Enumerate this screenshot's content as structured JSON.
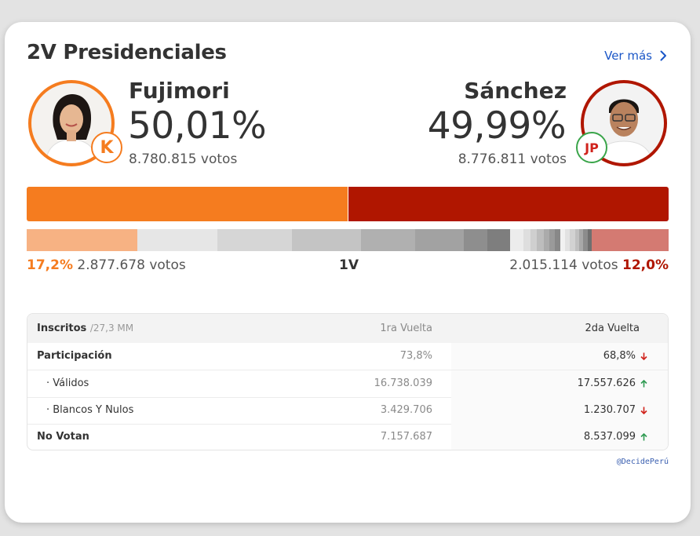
{
  "header": {
    "title": "2V Presidenciales",
    "more_label": "Ver más"
  },
  "candidates": {
    "left": {
      "name": "Fujimori",
      "percent": "50,01%",
      "votes": "8.780.815 votos",
      "party_badge": "K",
      "color": "#f57c1f",
      "share": 50.01
    },
    "right": {
      "name": "Sánchez",
      "percent": "49,99%",
      "votes": "8.776.811 votos",
      "party_badge": "JP",
      "color": "#b01600",
      "share": 49.99
    }
  },
  "first_round": {
    "label": "1V",
    "left": {
      "percent": "17,2%",
      "votes": "2.877.678 votos",
      "share": 17.2
    },
    "right": {
      "percent": "12,0%",
      "votes": "2.015.114 votos",
      "share": 12.0
    }
  },
  "table": {
    "header": {
      "label": "Inscritos",
      "sub": "/27,3 MM",
      "col1": "1ra Vuelta",
      "col2": "2da Vuelta"
    },
    "rows": [
      {
        "label": "Participación",
        "v1": "73,8%",
        "v2": "68,8%",
        "trend": "down"
      },
      {
        "label": "· Válidos",
        "v1": "16.738.039",
        "v2": "17.557.626",
        "trend": "up"
      },
      {
        "label": "· Blancos Y Nulos",
        "v1": "3.429.706",
        "v2": "1.230.707",
        "trend": "down"
      },
      {
        "label": "No Votan",
        "v1": "7.157.687",
        "v2": "8.537.099",
        "trend": "up"
      }
    ]
  },
  "footer": {
    "credit": "@DecidePerú"
  },
  "icons": {
    "more": "chevron-right-icon",
    "up": "arrow-up-icon",
    "down": "arrow-down-icon"
  },
  "colors": {
    "up": "#2f9a52",
    "down": "#d0231c",
    "link": "#1a56c7"
  }
}
